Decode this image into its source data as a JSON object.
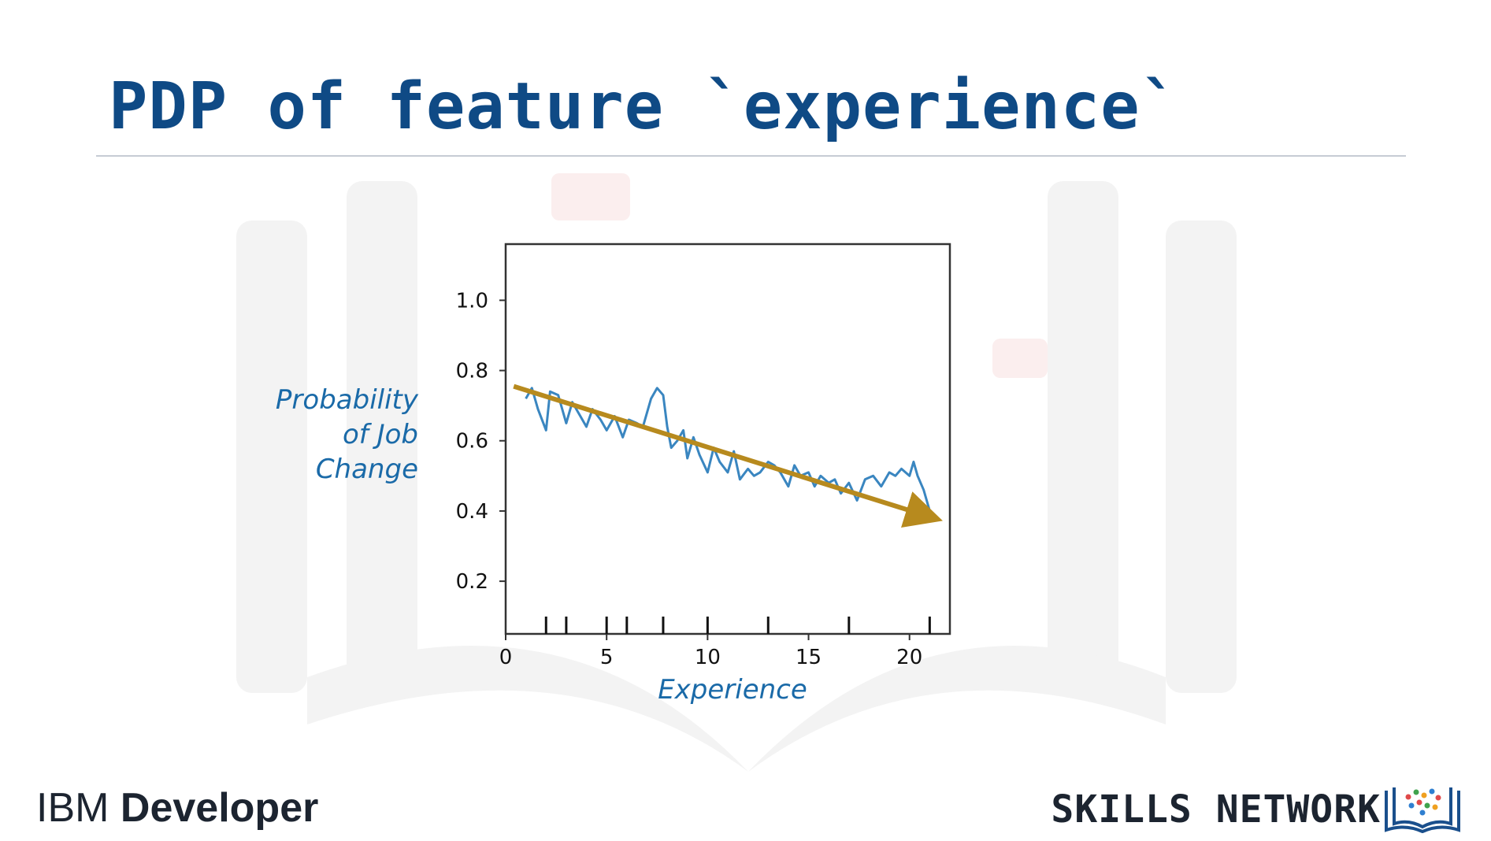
{
  "slide": {
    "title": "PDP of feature `experience`"
  },
  "chart_data": {
    "type": "line",
    "title": "",
    "xlabel": "Experience",
    "ylabel": "Probability of Job Change",
    "ylabel_lines": [
      "Probability",
      "of Job",
      "Change"
    ],
    "xlim": [
      0,
      22
    ],
    "ylim": [
      0.05,
      1.16
    ],
    "x_ticks": [
      0,
      5,
      10,
      15,
      20
    ],
    "x_tick_labels": [
      "0",
      "5",
      "10",
      "15",
      "20"
    ],
    "y_ticks": [
      0.2,
      0.4,
      0.6,
      0.8,
      1.0
    ],
    "y_tick_labels": [
      "0.2",
      "0.4",
      "0.6",
      "0.8",
      "1.0"
    ],
    "rug_x": [
      2,
      3,
      5,
      6,
      7.8,
      10,
      13,
      17,
      21
    ],
    "grid": false,
    "series": [
      {
        "color": "#3a86c0",
        "x": [
          1.0,
          1.3,
          1.6,
          2.0,
          2.2,
          2.6,
          3.0,
          3.3,
          3.6,
          4.0,
          4.3,
          4.7,
          5.0,
          5.4,
          5.8,
          6.1,
          6.5,
          6.8,
          7.2,
          7.5,
          7.8,
          8.0,
          8.2,
          8.5,
          8.8,
          9.0,
          9.3,
          9.6,
          10.0,
          10.3,
          10.6,
          11.0,
          11.3,
          11.6,
          12.0,
          12.3,
          12.6,
          13.0,
          13.3,
          13.6,
          14.0,
          14.3,
          14.6,
          15.0,
          15.3,
          15.6,
          16.0,
          16.3,
          16.6,
          17.0,
          17.4,
          17.8,
          18.2,
          18.6,
          19.0,
          19.3,
          19.6,
          20.0,
          20.2,
          20.4,
          20.7,
          21.0
        ],
        "values": [
          0.72,
          0.75,
          0.69,
          0.63,
          0.74,
          0.73,
          0.65,
          0.71,
          0.68,
          0.64,
          0.69,
          0.66,
          0.63,
          0.67,
          0.61,
          0.66,
          0.65,
          0.64,
          0.72,
          0.75,
          0.73,
          0.64,
          0.58,
          0.6,
          0.63,
          0.55,
          0.61,
          0.56,
          0.51,
          0.58,
          0.54,
          0.51,
          0.57,
          0.49,
          0.52,
          0.5,
          0.51,
          0.54,
          0.53,
          0.51,
          0.47,
          0.53,
          0.5,
          0.51,
          0.47,
          0.5,
          0.48,
          0.49,
          0.45,
          0.48,
          0.43,
          0.49,
          0.5,
          0.47,
          0.51,
          0.5,
          0.52,
          0.5,
          0.54,
          0.5,
          0.46,
          0.4
        ]
      }
    ],
    "trend_arrow": {
      "color": "#b78a1e",
      "x": [
        0.4,
        21.2
      ],
      "values": [
        0.755,
        0.38
      ]
    }
  },
  "branding": {
    "ibm_light": "IBM",
    "ibm_bold": "Developer",
    "skills": "SKILLS NETWORK"
  }
}
